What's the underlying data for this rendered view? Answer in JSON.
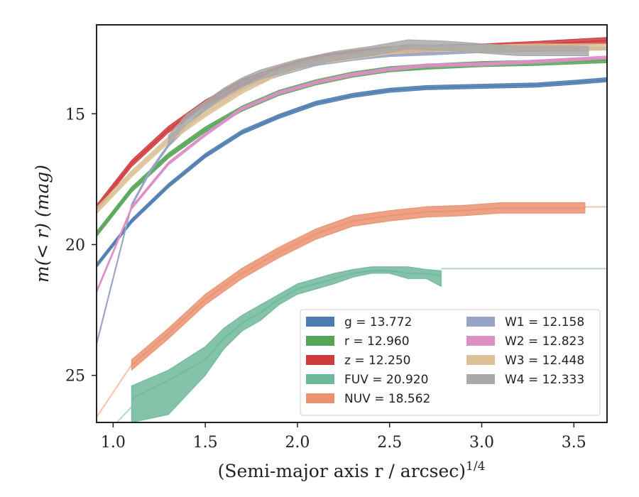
{
  "chart_data": {
    "type": "line",
    "title": "",
    "xlabel": "(Semi-major axis r / arcsec)",
    "xlabel_sup": "1/4",
    "ylabel": "m(< r) (mag)",
    "xlim": [
      0.91,
      3.68
    ],
    "ylim": [
      26.8,
      11.6
    ],
    "y_inverted": true,
    "x_ticks": [
      "1.0",
      "1.5",
      "2.0",
      "2.5",
      "3.0",
      "3.5"
    ],
    "y_ticks": [
      "15",
      "20",
      "25"
    ],
    "grid": false,
    "legend_position": "lower-right",
    "legend": [
      {
        "label": "g = 13.772",
        "color": "#4c7caf"
      },
      {
        "label": "r = 12.960",
        "color": "#55a556"
      },
      {
        "label": "z = 12.250",
        "color": "#cf3a3d"
      },
      {
        "label": "FUV = 20.920",
        "color": "#6fb79b"
      },
      {
        "label": "NUV = 18.562",
        "color": "#ea9170"
      },
      {
        "label": "W1 = 12.158",
        "color": "#97a4c7"
      },
      {
        "label": "W2 = 12.823",
        "color": "#dd8fc6"
      },
      {
        "label": "W3 = 12.448",
        "color": "#dcc196"
      },
      {
        "label": "W4 = 12.333",
        "color": "#a9a9a9"
      }
    ],
    "series": [
      {
        "name": "g = 13.772",
        "color": "#4c7caf",
        "x": [
          0.91,
          1.1,
          1.3,
          1.5,
          1.7,
          1.9,
          2.1,
          2.3,
          2.5,
          2.7,
          3.0,
          3.3,
          3.5,
          3.68
        ],
        "y": [
          20.8,
          19.1,
          17.75,
          16.6,
          15.7,
          15.1,
          14.6,
          14.3,
          14.1,
          14.0,
          13.95,
          13.9,
          13.8,
          13.7
        ],
        "band": 0.08
      },
      {
        "name": "r = 12.960",
        "color": "#55a556",
        "x": [
          0.91,
          1.1,
          1.3,
          1.5,
          1.7,
          1.9,
          2.1,
          2.3,
          2.5,
          2.7,
          3.0,
          3.3,
          3.68
        ],
        "y": [
          19.6,
          17.9,
          16.6,
          15.6,
          14.8,
          14.2,
          13.8,
          13.5,
          13.3,
          13.2,
          13.1,
          13.05,
          12.95
        ],
        "band": 0.1
      },
      {
        "name": "z = 12.250",
        "color": "#cf3a3d",
        "x": [
          0.91,
          1.1,
          1.3,
          1.5,
          1.7,
          1.9,
          2.1,
          2.3,
          2.5,
          2.7,
          3.0,
          3.3,
          3.68
        ],
        "y": [
          18.6,
          16.9,
          15.6,
          14.6,
          13.8,
          13.3,
          12.9,
          12.7,
          12.55,
          12.5,
          12.45,
          12.35,
          12.2
        ],
        "band": 0.12
      },
      {
        "name": "FUV = 20.920",
        "color": "#6fb79b",
        "x": [
          1.1,
          1.3,
          1.5,
          1.6,
          1.7,
          1.8,
          1.9,
          2.0,
          2.1,
          2.2,
          2.3,
          2.4,
          2.5,
          2.6,
          2.7,
          2.78
        ],
        "y": [
          25.9,
          25.2,
          24.4,
          23.6,
          23.0,
          22.6,
          22.1,
          21.7,
          21.5,
          21.3,
          21.1,
          21.0,
          21.0,
          21.1,
          21.1,
          21.2
        ],
        "band_upper": [
          25.4,
          24.8,
          23.9,
          23.2,
          22.7,
          22.3,
          21.9,
          21.5,
          21.3,
          21.1,
          20.95,
          20.85,
          20.85,
          20.85,
          20.95,
          21.0
        ],
        "band_lower": [
          26.8,
          26.5,
          25.0,
          24.0,
          23.3,
          22.9,
          22.3,
          21.9,
          21.7,
          21.5,
          21.25,
          21.1,
          21.1,
          21.3,
          21.3,
          21.6
        ],
        "extension": {
          "x": [
            2.78,
            3.68
          ],
          "y": [
            20.92,
            20.92
          ]
        },
        "inner_extension": {
          "x": [
            1.02,
            1.1
          ],
          "y": [
            26.8,
            26.2
          ]
        }
      },
      {
        "name": "NUV = 18.562",
        "color": "#ea9170",
        "x": [
          1.1,
          1.3,
          1.5,
          1.7,
          1.9,
          2.1,
          2.3,
          2.5,
          2.7,
          2.9,
          3.1,
          3.3,
          3.56
        ],
        "y": [
          24.6,
          23.4,
          22.1,
          21.1,
          20.3,
          19.6,
          19.1,
          18.9,
          18.75,
          18.7,
          18.6,
          18.6,
          18.6
        ],
        "band": 0.2,
        "extension": {
          "x": [
            3.56,
            3.68
          ],
          "y": [
            18.56,
            18.56
          ]
        },
        "inner_extension": {
          "x": [
            0.91,
            1.1
          ],
          "y": [
            26.6,
            24.6
          ]
        }
      },
      {
        "name": "W1 = 12.158",
        "color": "#97a4c7",
        "x": [
          0.91,
          1.1,
          1.2,
          1.3,
          1.5,
          1.7,
          1.9,
          2.1,
          2.3,
          2.5,
          2.7,
          3.0,
          3.3,
          3.68
        ],
        "y": [
          23.8,
          18.5,
          17.2,
          16.2,
          14.8,
          14.0,
          13.5,
          13.1,
          12.9,
          12.75,
          12.7,
          12.6,
          12.55,
          12.5
        ],
        "band": 0.06
      },
      {
        "name": "W2 = 12.823",
        "color": "#dd8fc6",
        "x": [
          0.91,
          1.1,
          1.3,
          1.5,
          1.7,
          1.9,
          2.1,
          2.3,
          2.5,
          2.7,
          3.0,
          3.3,
          3.68
        ],
        "y": [
          21.8,
          18.6,
          16.9,
          15.8,
          14.8,
          14.2,
          13.8,
          13.5,
          13.3,
          13.15,
          13.1,
          13.0,
          12.85
        ],
        "band": 0.06
      },
      {
        "name": "W3 = 12.448",
        "color": "#dcc196",
        "x": [
          0.91,
          1.1,
          1.3,
          1.5,
          1.7,
          1.9,
          2.1,
          2.3,
          2.5,
          2.7,
          3.0,
          3.3,
          3.58,
          3.68
        ],
        "y": [
          18.7,
          17.3,
          16.0,
          15.0,
          14.1,
          13.4,
          13.0,
          12.8,
          12.6,
          12.5,
          12.5,
          12.45,
          12.45,
          12.45
        ],
        "band": 0.12
      },
      {
        "name": "W4 = 12.333",
        "color": "#a9a9a9",
        "x": [
          1.3,
          1.4,
          1.5,
          1.6,
          1.7,
          1.8,
          2.0,
          2.2,
          2.4,
          2.6,
          2.8,
          3.0,
          3.2,
          3.4,
          3.58
        ],
        "y": [
          16.0,
          15.2,
          14.7,
          14.2,
          13.8,
          13.5,
          13.1,
          12.8,
          12.6,
          12.35,
          12.4,
          12.5,
          12.6,
          12.6,
          12.6
        ],
        "band": 0.18
      }
    ]
  }
}
